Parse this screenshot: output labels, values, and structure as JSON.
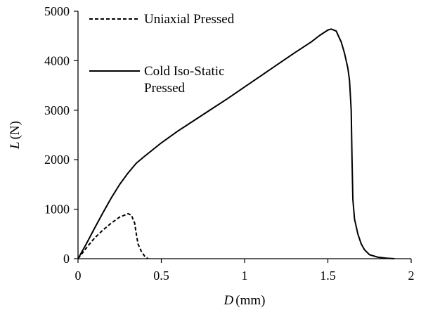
{
  "chart_data": {
    "type": "line",
    "xlabel": {
      "var": "D",
      "unit": "(mm)"
    },
    "ylabel": {
      "var": "L",
      "unit": "(N)"
    },
    "xlim": [
      0,
      2
    ],
    "ylim": [
      0,
      5000
    ],
    "xticks": [
      0,
      0.5,
      1,
      1.5,
      2
    ],
    "xtick_labels": [
      "0",
      "0.5",
      "1",
      "1.5",
      "2"
    ],
    "yticks": [
      0,
      1000,
      2000,
      3000,
      4000,
      5000
    ],
    "ytick_labels": [
      "0",
      "1000",
      "2000",
      "3000",
      "4000",
      "5000"
    ],
    "grid": false,
    "legend_position": "top-left",
    "series": [
      {
        "name": "Uniaxial Pressed",
        "style": "dashed",
        "color": "#000000",
        "x": [
          0,
          0.03,
          0.06,
          0.1,
          0.15,
          0.2,
          0.25,
          0.28,
          0.3,
          0.32,
          0.34,
          0.35,
          0.36,
          0.38,
          0.4,
          0.42
        ],
        "y": [
          0,
          130,
          260,
          420,
          580,
          720,
          840,
          880,
          910,
          880,
          720,
          500,
          300,
          150,
          50,
          0
        ]
      },
      {
        "name": "Cold Iso-Static Pressed",
        "name_lines": [
          "Cold Iso-Static",
          "Pressed"
        ],
        "style": "solid",
        "color": "#000000",
        "x": [
          0,
          0.05,
          0.1,
          0.15,
          0.2,
          0.25,
          0.3,
          0.35,
          0.4,
          0.5,
          0.6,
          0.7,
          0.8,
          0.9,
          1.0,
          1.1,
          1.2,
          1.3,
          1.4,
          1.45,
          1.5,
          1.52,
          1.55,
          1.58,
          1.6,
          1.62,
          1.63,
          1.64,
          1.645,
          1.65,
          1.66,
          1.68,
          1.7,
          1.72,
          1.75,
          1.8,
          1.85,
          1.9
        ],
        "y": [
          0,
          300,
          620,
          930,
          1230,
          1500,
          1730,
          1930,
          2070,
          2340,
          2580,
          2800,
          3020,
          3240,
          3470,
          3700,
          3930,
          4160,
          4380,
          4510,
          4620,
          4640,
          4600,
          4380,
          4150,
          3850,
          3600,
          3000,
          2000,
          1200,
          800,
          500,
          300,
          180,
          80,
          30,
          10,
          0
        ]
      }
    ]
  }
}
